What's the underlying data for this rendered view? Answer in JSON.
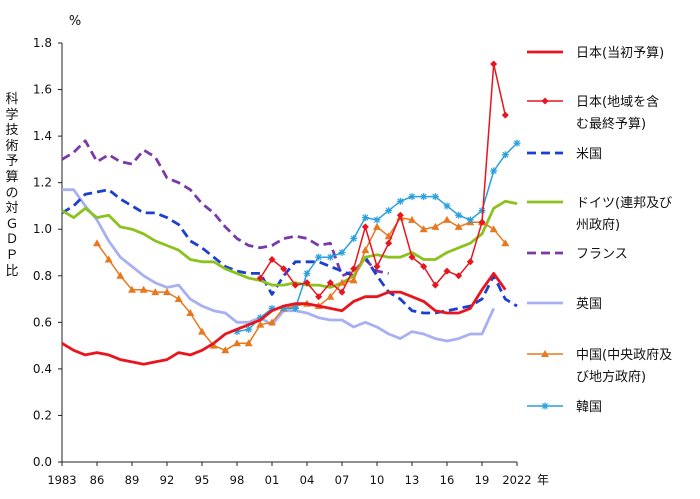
{
  "chart_data": {
    "type": "line",
    "title": "",
    "unit_label": "%",
    "ylabel": "科学技術予算の対ＧＤＰ比",
    "xlabel_unit": "年",
    "ylim": [
      0.0,
      1.8
    ],
    "yticks": [
      "0.0",
      "0.2",
      "0.4",
      "0.6",
      "0.8",
      "1.0",
      "1.2",
      "1.4",
      "1.6",
      "1.8"
    ],
    "xlim": [
      1983,
      2022
    ],
    "xtick_values": [
      1983,
      1986,
      1989,
      1992,
      1995,
      1998,
      2001,
      2004,
      2007,
      2010,
      2013,
      2016,
      2019,
      2022
    ],
    "xtick_labels": [
      "1983",
      "86",
      "89",
      "92",
      "95",
      "98",
      "01",
      "04",
      "07",
      "10",
      "13",
      "16",
      "19",
      "2022"
    ],
    "grid": false,
    "legend_position": "right",
    "series": [
      {
        "name": "日本(当初予算)",
        "legend_lines": [
          "日本(当初予算)"
        ],
        "color": "#e8141e",
        "dash": "",
        "marker": "none",
        "x": [
          1983,
          1984,
          1985,
          1986,
          1987,
          1988,
          1989,
          1990,
          1991,
          1992,
          1993,
          1994,
          1995,
          1996,
          1997,
          1998,
          1999,
          2000,
          2001,
          2002,
          2003,
          2004,
          2005,
          2006,
          2007,
          2008,
          2009,
          2010,
          2011,
          2012,
          2013,
          2014,
          2015,
          2016,
          2017,
          2018,
          2019,
          2020,
          2021
        ],
        "y": [
          0.51,
          0.48,
          0.46,
          0.47,
          0.46,
          0.44,
          0.43,
          0.42,
          0.43,
          0.44,
          0.47,
          0.46,
          0.48,
          0.51,
          0.55,
          0.57,
          0.59,
          0.61,
          0.65,
          0.67,
          0.68,
          0.68,
          0.67,
          0.66,
          0.65,
          0.69,
          0.71,
          0.71,
          0.73,
          0.73,
          0.71,
          0.69,
          0.65,
          0.64,
          0.64,
          0.66,
          0.74,
          0.81,
          0.74
        ]
      },
      {
        "name": "日本(地域を含む最終予算)",
        "legend_lines": [
          "日本(地域を含",
          "む最終予算)"
        ],
        "color": "#e8141e",
        "dash": "",
        "marker": "diamond",
        "x": [
          2000,
          2001,
          2002,
          2003,
          2004,
          2005,
          2006,
          2007,
          2008,
          2009,
          2010,
          2011,
          2012,
          2013,
          2014,
          2015,
          2016,
          2017,
          2018,
          2019,
          2020,
          2021
        ],
        "y": [
          0.79,
          0.87,
          0.83,
          0.76,
          0.77,
          0.71,
          0.77,
          0.73,
          0.83,
          1.01,
          0.84,
          0.94,
          1.06,
          0.88,
          0.84,
          0.76,
          0.82,
          0.8,
          0.86,
          1.03,
          1.71,
          1.49
        ]
      },
      {
        "name": "米国",
        "legend_lines": [
          "米国"
        ],
        "color": "#1b3fd1",
        "dash": "9,5",
        "marker": "none",
        "x": [
          1983,
          1984,
          1985,
          1986,
          1987,
          1988,
          1989,
          1990,
          1991,
          1992,
          1993,
          1994,
          1995,
          1996,
          1997,
          1998,
          1999,
          2000,
          2001,
          2002,
          2003,
          2004,
          2005,
          2006,
          2007,
          2008,
          2009,
          2010,
          2011,
          2012,
          2013,
          2014,
          2015,
          2016,
          2017,
          2018,
          2019,
          2020,
          2021,
          2022
        ],
        "y": [
          1.07,
          1.1,
          1.15,
          1.16,
          1.17,
          1.13,
          1.1,
          1.07,
          1.07,
          1.05,
          1.02,
          0.95,
          0.92,
          0.88,
          0.84,
          0.82,
          0.81,
          0.81,
          0.72,
          0.8,
          0.86,
          0.86,
          0.86,
          0.84,
          0.82,
          0.8,
          0.88,
          0.8,
          0.73,
          0.7,
          0.65,
          0.64,
          0.64,
          0.65,
          0.66,
          0.67,
          0.7,
          0.8,
          0.7,
          0.67
        ]
      },
      {
        "name": "ドイツ(連邦及び州政府)",
        "legend_lines": [
          "ドイツ(連邦及び",
          "州政府)"
        ],
        "color": "#8cc21e",
        "dash": "",
        "marker": "none",
        "x": [
          1983,
          1984,
          1985,
          1986,
          1987,
          1988,
          1989,
          1990,
          1991,
          1992,
          1993,
          1994,
          1995,
          1996,
          1997,
          1998,
          1999,
          2000,
          2001,
          2002,
          2003,
          2004,
          2005,
          2006,
          2007,
          2008,
          2009,
          2010,
          2011,
          2012,
          2013,
          2014,
          2015,
          2016,
          2017,
          2018,
          2019,
          2020,
          2021,
          2022
        ],
        "y": [
          1.08,
          1.05,
          1.09,
          1.05,
          1.06,
          1.01,
          1.0,
          0.98,
          0.95,
          0.93,
          0.91,
          0.87,
          0.86,
          0.86,
          0.83,
          0.81,
          0.79,
          0.78,
          0.76,
          0.76,
          0.77,
          0.76,
          0.76,
          0.75,
          0.77,
          0.8,
          0.88,
          0.89,
          0.88,
          0.88,
          0.9,
          0.87,
          0.87,
          0.9,
          0.92,
          0.94,
          0.98,
          1.09,
          1.12,
          1.11
        ]
      },
      {
        "name": "フランス",
        "legend_lines": [
          "フランス"
        ],
        "color": "#7a3aa8",
        "dash": "9,5",
        "marker": "none",
        "x": [
          1983,
          1984,
          1985,
          1986,
          1987,
          1988,
          1989,
          1990,
          1991,
          1992,
          1993,
          1994,
          1995,
          1996,
          1997,
          1998,
          1999,
          2000,
          2001,
          2002,
          2003,
          2004,
          2005,
          2006,
          2007,
          2008,
          2009,
          2010,
          2011
        ],
        "y": [
          1.3,
          1.33,
          1.38,
          1.29,
          1.32,
          1.29,
          1.28,
          1.34,
          1.31,
          1.22,
          1.2,
          1.17,
          1.11,
          1.07,
          1.01,
          0.96,
          0.93,
          0.92,
          0.93,
          0.96,
          0.97,
          0.96,
          0.93,
          0.94,
          0.8,
          0.82,
          0.87,
          0.82,
          0.81
        ]
      },
      {
        "name": "英国",
        "legend_lines": [
          "英国"
        ],
        "color": "#a9b0f2",
        "dash": "",
        "marker": "none",
        "x": [
          1983,
          1984,
          1985,
          1986,
          1987,
          1988,
          1989,
          1990,
          1991,
          1992,
          1993,
          1994,
          1995,
          1996,
          1997,
          1998,
          1999,
          2000,
          2001,
          2002,
          2003,
          2004,
          2005,
          2006,
          2007,
          2008,
          2009,
          2010,
          2011,
          2012,
          2013,
          2014,
          2015,
          2016,
          2017,
          2018,
          2019,
          2020
        ],
        "y": [
          1.17,
          1.17,
          1.1,
          1.04,
          0.95,
          0.88,
          0.84,
          0.8,
          0.77,
          0.75,
          0.76,
          0.7,
          0.67,
          0.65,
          0.64,
          0.6,
          0.6,
          0.62,
          0.59,
          0.65,
          0.65,
          0.64,
          0.62,
          0.61,
          0.61,
          0.58,
          0.6,
          0.58,
          0.55,
          0.53,
          0.56,
          0.55,
          0.53,
          0.52,
          0.53,
          0.55,
          0.55,
          0.66
        ]
      },
      {
        "name": "中国(中央政府及び地方政府)",
        "legend_lines": [
          "中国(中央政府及",
          "び地方政府)"
        ],
        "color": "#e87820",
        "dash": "",
        "marker": "triangle",
        "x": [
          1986,
          1987,
          1988,
          1989,
          1990,
          1991,
          1992,
          1993,
          1994,
          1995,
          1996,
          1997,
          1998,
          1999,
          2000,
          2001,
          2002,
          2003,
          2004,
          2005,
          2006,
          2007,
          2008,
          2009,
          2010,
          2011,
          2012,
          2013,
          2014,
          2015,
          2016,
          2017,
          2018,
          2019,
          2020,
          2021
        ],
        "y": [
          0.94,
          0.87,
          0.8,
          0.74,
          0.74,
          0.73,
          0.73,
          0.7,
          0.64,
          0.56,
          0.5,
          0.48,
          0.51,
          0.51,
          0.59,
          0.6,
          0.66,
          0.67,
          0.68,
          0.67,
          0.71,
          0.77,
          0.78,
          0.91,
          1.01,
          0.97,
          1.05,
          1.04,
          1.0,
          1.01,
          1.04,
          1.01,
          1.03,
          1.03,
          1.0,
          0.94
        ]
      },
      {
        "name": "韓国",
        "legend_lines": [
          "韓国"
        ],
        "color": "#2aa0dc",
        "dash": "",
        "marker": "star",
        "x": [
          1998,
          1999,
          2000,
          2001,
          2002,
          2003,
          2004,
          2005,
          2006,
          2007,
          2008,
          2009,
          2010,
          2011,
          2012,
          2013,
          2014,
          2015,
          2016,
          2017,
          2018,
          2019,
          2020,
          2021,
          2022
        ],
        "y": [
          0.56,
          0.57,
          0.62,
          0.66,
          0.66,
          0.66,
          0.81,
          0.88,
          0.88,
          0.9,
          0.96,
          1.05,
          1.04,
          1.08,
          1.12,
          1.14,
          1.14,
          1.14,
          1.1,
          1.06,
          1.04,
          1.08,
          1.25,
          1.32,
          1.37
        ]
      }
    ]
  }
}
